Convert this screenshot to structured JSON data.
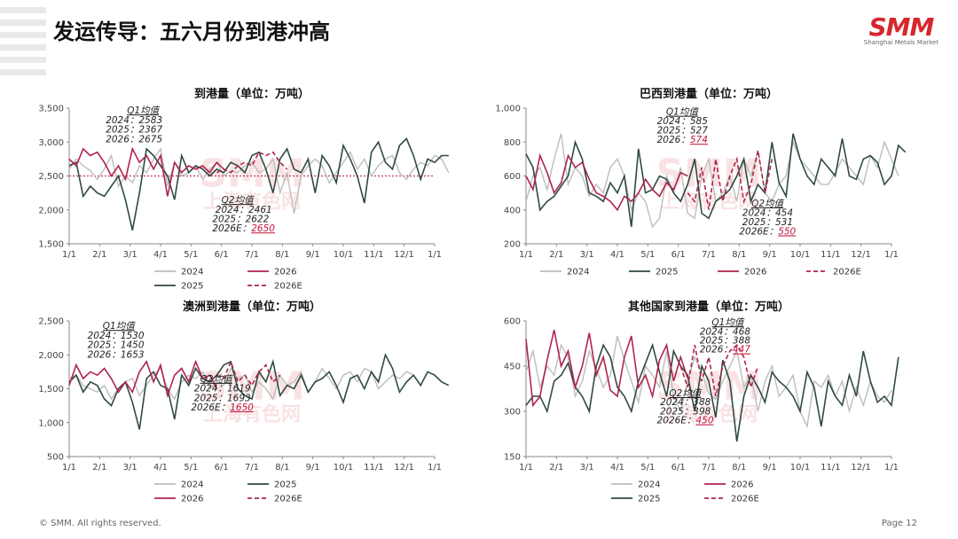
{
  "page": {
    "title": "发运传导：五六月份到港冲高",
    "logo": "SMM",
    "logo_sub": "Shanghai Metals Market",
    "watermark": "SMM",
    "watermark_sub": "上海有色网",
    "footer_left": "© SMM. All rights reserved.",
    "footer_right": "Page 12"
  },
  "colors": {
    "2024": "#bdbdbd",
    "2025": "#2f4a40",
    "2026": "#b0244a",
    "2026E": "#b0244a"
  },
  "chart_data": [
    {
      "type": "line",
      "title": "到港量（单位：万吨）",
      "ylim": [
        1500,
        3500
      ],
      "yticks": [
        "1,500",
        "2,000",
        "2,500",
        "3,000",
        "3,500"
      ],
      "yvals": [
        1500,
        2000,
        2500,
        3000,
        3500
      ],
      "xticks": [
        "1/1",
        "2/1",
        "3/1",
        "4/1",
        "5/1",
        "6/1",
        "7/1",
        "8/1",
        "9/1",
        "10/1",
        "11/1",
        "12/1",
        "1/1"
      ],
      "ref_line": 2500,
      "annotations": [
        {
          "text": "Q1均值",
          "row": 0,
          "x_at": 1.9,
          "y": 3420,
          "underline": true
        },
        {
          "text": "2024：2583",
          "row": 1,
          "x_at": 1.2,
          "y": 3280
        },
        {
          "text": "2025：2367",
          "row": 2,
          "x_at": 1.2,
          "y": 3140
        },
        {
          "text": "2026：2675",
          "row": 3,
          "x_at": 1.2,
          "y": 3000
        },
        {
          "text": "Q2均值",
          "row": 0,
          "x_at": 5.0,
          "y": 2100,
          "underline": true
        },
        {
          "text": "2024：2461",
          "row": 1,
          "x_at": 4.8,
          "y": 1960
        },
        {
          "text": "2025：2622",
          "row": 2,
          "x_at": 4.7,
          "y": 1820
        },
        {
          "text": "2026E：",
          "row": 3,
          "x_at": 4.7,
          "y": 1680,
          "tail": "2650"
        }
      ],
      "legend": [
        "2024",
        "2026",
        "2025",
        "2026E"
      ],
      "series": [
        {
          "name": "2024",
          "values": [
            2600,
            2750,
            2650,
            2580,
            2450,
            2600,
            2800,
            2350,
            2500,
            2400,
            2650,
            2550,
            2750,
            2900,
            2350,
            2700,
            2500,
            2550,
            2650,
            2450,
            2600,
            2700,
            2500,
            2580,
            2550,
            2650,
            2700,
            2550,
            2600,
            2750,
            2250,
            2550,
            1950,
            2500,
            2650,
            2750,
            2650,
            2400,
            2550,
            2700,
            2850,
            2600,
            2750,
            2500,
            2650,
            2750,
            2800,
            2550,
            2450,
            2600,
            2700,
            2650,
            2800,
            2750,
            2550
          ]
        },
        {
          "name": "2025",
          "values": [
            2650,
            2700,
            2200,
            2350,
            2250,
            2200,
            2350,
            2500,
            2150,
            1700,
            2250,
            2900,
            2800,
            2650,
            2500,
            2150,
            2800,
            2550,
            2650,
            2600,
            2500,
            2600,
            2550,
            2700,
            2650,
            2550,
            2800,
            2850,
            2600,
            2250,
            2750,
            2900,
            2600,
            2550,
            2750,
            2250,
            2800,
            2650,
            2400,
            2950,
            2750,
            2500,
            2100,
            2850,
            3000,
            2700,
            2600,
            2950,
            3050,
            2800,
            2450,
            2750,
            2700,
            2800,
            2800
          ]
        },
        {
          "name": "2026",
          "values": [
            2750,
            2650,
            2900,
            2800,
            2850,
            2700,
            2500,
            2650,
            2450,
            2900,
            2700,
            2800,
            2600,
            2800,
            2200,
            2700,
            2550,
            2650,
            2600,
            2650,
            2550,
            2700,
            2600
          ]
        },
        {
          "name": "2026E",
          "dashed": true,
          "values": [
            2550,
            2600,
            2550,
            2650,
            2700,
            2650,
            2850,
            2800,
            2850,
            2700,
            2600
          ],
          "offset": 21
        }
      ]
    },
    {
      "type": "line",
      "title": "巴西到港量（单位：万吨）",
      "ylim": [
        200,
        1000
      ],
      "yticks": [
        "200",
        "400",
        "600",
        "800",
        "1,000"
      ],
      "yvals": [
        200,
        400,
        600,
        800,
        1000
      ],
      "xticks": [
        "1/1",
        "2/1",
        "3/1",
        "4/1",
        "5/1",
        "6/1",
        "7/1",
        "8/1",
        "9/1",
        "10/1",
        "11/1",
        "12/1",
        "1/1"
      ],
      "annotations": [
        {
          "text": "Q1均值",
          "row": 0,
          "x_at": 4.6,
          "y": 960,
          "underline": true
        },
        {
          "text": "2024：585",
          "row": 1,
          "x_at": 4.3,
          "y": 905
        },
        {
          "text": "2025：527",
          "row": 2,
          "x_at": 4.3,
          "y": 850
        },
        {
          "text": "2026：",
          "row": 3,
          "x_at": 4.3,
          "y": 795,
          "tail": "574"
        },
        {
          "text": "Q2均值",
          "row": 0,
          "x_at": 7.4,
          "y": 420,
          "underline": true
        },
        {
          "text": "2024：454",
          "row": 1,
          "x_at": 7.1,
          "y": 365
        },
        {
          "text": "2025：531",
          "row": 2,
          "x_at": 7.1,
          "y": 310
        },
        {
          "text": "2026E：",
          "row": 3,
          "x_at": 7.0,
          "y": 255,
          "tail": "550"
        }
      ],
      "legend": [
        "2024",
        "2025",
        "2026",
        "2026E"
      ],
      "series": [
        {
          "name": "2024",
          "values": [
            450,
            600,
            650,
            520,
            700,
            850,
            550,
            650,
            600,
            480,
            550,
            500,
            650,
            700,
            600,
            400,
            500,
            450,
            300,
            350,
            600,
            500,
            650,
            380,
            350,
            600,
            700,
            450,
            500,
            600,
            450,
            700,
            600,
            750,
            500,
            450,
            550,
            600,
            800,
            700,
            650,
            600,
            550,
            550,
            620,
            700,
            650,
            600,
            550,
            720,
            650,
            800,
            700,
            600
          ]
        },
        {
          "name": "2025",
          "values": [
            730,
            650,
            400,
            450,
            480,
            540,
            600,
            800,
            700,
            500,
            480,
            450,
            560,
            500,
            600,
            300,
            760,
            500,
            520,
            600,
            580,
            500,
            450,
            550,
            700,
            380,
            350,
            450,
            480,
            520,
            600,
            700,
            450,
            550,
            500,
            800,
            560,
            480,
            850,
            700,
            600,
            550,
            700,
            650,
            600,
            820,
            600,
            580,
            700,
            720,
            680,
            550,
            600,
            780,
            740
          ]
        },
        {
          "name": "2026",
          "values": [
            600,
            520,
            720,
            620,
            500,
            560,
            720,
            650,
            680,
            580,
            500,
            480,
            450,
            400,
            480,
            450,
            500,
            580,
            520,
            480,
            560,
            520,
            620,
            600
          ]
        },
        {
          "name": "2026E",
          "dashed": true,
          "values": [
            500,
            450,
            650,
            400,
            700,
            450,
            600,
            700,
            450,
            550,
            750,
            500,
            700
          ],
          "offset": 23
        }
      ]
    },
    {
      "type": "line",
      "title": "澳洲到港量（单位：万吨）",
      "ylim": [
        500,
        2500
      ],
      "yticks": [
        "500",
        "1,000",
        "1,500",
        "2,000",
        "2,500"
      ],
      "yvals": [
        500,
        1000,
        1500,
        2000,
        2500
      ],
      "xticks": [
        "1/1",
        "2/1",
        "3/1",
        "4/1",
        "5/1",
        "6/1",
        "7/1",
        "8/1",
        "9/1",
        "10/1",
        "11/1",
        "12/1",
        "1/1"
      ],
      "annotations": [
        {
          "text": "Q1均值",
          "row": 0,
          "x_at": 1.1,
          "y": 2380,
          "underline": true
        },
        {
          "text": "2024：1530",
          "row": 1,
          "x_at": 0.6,
          "y": 2240
        },
        {
          "text": "2025：1450",
          "row": 2,
          "x_at": 0.6,
          "y": 2100
        },
        {
          "text": "2026：1653",
          "row": 3,
          "x_at": 0.6,
          "y": 1960
        },
        {
          "text": "Q2均值",
          "row": 0,
          "x_at": 4.3,
          "y": 1600,
          "underline": true
        },
        {
          "text": "2024：1619",
          "row": 1,
          "x_at": 4.1,
          "y": 1460
        },
        {
          "text": "2025：1693",
          "row": 2,
          "x_at": 4.1,
          "y": 1320
        },
        {
          "text": "2026E：",
          "row": 3,
          "x_at": 4.0,
          "y": 1180,
          "tail": "1650"
        }
      ],
      "legend": [
        "2024",
        "2025",
        "2026",
        "2026E"
      ],
      "series": [
        {
          "name": "2024",
          "values": [
            1650,
            1700,
            1550,
            1500,
            1450,
            1550,
            1350,
            1500,
            1600,
            1650,
            1400,
            1550,
            1700,
            1800,
            1500,
            1350,
            1600,
            1700,
            1650,
            1750,
            1500,
            1600,
            1550,
            1800,
            1650,
            1700,
            1450,
            1600,
            1500,
            1350,
            1700,
            1550,
            1600,
            1750,
            1450,
            1600,
            1800,
            1650,
            1500,
            1700,
            1750,
            1600,
            1800,
            1750,
            1500,
            1600,
            1700,
            1650,
            1750,
            1700,
            1550
          ]
        },
        {
          "name": "2025",
          "values": [
            1600,
            1700,
            1450,
            1600,
            1550,
            1350,
            1250,
            1500,
            1600,
            1300,
            900,
            1650,
            1750,
            1550,
            1500,
            1050,
            1700,
            1550,
            1800,
            1650,
            1600,
            1700,
            1850,
            1900,
            1500,
            1400,
            1350,
            1750,
            1600,
            1900,
            1400,
            1550,
            1500,
            1700,
            1450,
            1600,
            1650,
            1750,
            1550,
            1300,
            1650,
            1700,
            1500,
            1750,
            1600,
            2000,
            1800,
            1450,
            1600,
            1700,
            1550,
            1750,
            1700,
            1600,
            1550
          ]
        },
        {
          "name": "2026",
          "values": [
            1550,
            1850,
            1650,
            1750,
            1700,
            1800,
            1650,
            1450,
            1600,
            1450,
            1750,
            1900,
            1600,
            1850,
            1400,
            1700,
            1800,
            1600,
            1900,
            1650,
            1700,
            1500
          ]
        },
        {
          "name": "2026E",
          "dashed": true,
          "values": [
            1700,
            1650,
            1900,
            1600,
            1700,
            1550,
            1750,
            1850,
            1600,
            1700
          ],
          "offset": 21
        }
      ]
    },
    {
      "type": "line",
      "title": "其他国家到港量（单位：万吨）",
      "ylim": [
        150,
        600
      ],
      "yticks": [
        "150",
        "300",
        "450",
        "600"
      ],
      "yvals": [
        150,
        300,
        450,
        600
      ],
      "xticks": [
        "1/1",
        "2/1",
        "3/1",
        "4/1",
        "5/1",
        "6/1",
        "7/1",
        "8/1",
        "9/1",
        "10/1",
        "11/1",
        "12/1",
        "1/1"
      ],
      "annotations": [
        {
          "text": "Q1均值",
          "row": 0,
          "x_at": 6.1,
          "y": 585,
          "underline": true
        },
        {
          "text": "2024：468",
          "row": 1,
          "x_at": 5.7,
          "y": 555
        },
        {
          "text": "2025：388",
          "row": 2,
          "x_at": 5.7,
          "y": 525
        },
        {
          "text": "2026：",
          "row": 3,
          "x_at": 5.7,
          "y": 495,
          "tail": "447"
        },
        {
          "text": "Q2均值",
          "row": 0,
          "x_at": 4.7,
          "y": 350,
          "underline": true
        },
        {
          "text": "2024：388",
          "row": 1,
          "x_at": 4.4,
          "y": 320
        },
        {
          "text": "2025：398",
          "row": 2,
          "x_at": 4.4,
          "y": 290
        },
        {
          "text": "2026E：",
          "row": 3,
          "x_at": 4.3,
          "y": 260,
          "tail": "450"
        }
      ],
      "legend": [
        "2024",
        "2026",
        "2025",
        "2026E"
      ],
      "series": [
        {
          "name": "2024",
          "values": [
            430,
            500,
            380,
            450,
            420,
            520,
            480,
            350,
            400,
            500,
            440,
            380,
            420,
            550,
            470,
            400,
            330,
            450,
            420,
            380,
            500,
            350,
            300,
            400,
            480,
            430,
            360,
            340,
            400,
            450,
            500,
            380,
            420,
            300,
            400,
            450,
            350,
            380,
            420,
            300,
            250,
            400,
            380,
            420,
            350,
            400,
            300,
            380,
            320,
            400,
            350,
            330,
            370
          ]
        },
        {
          "name": "2025",
          "values": [
            320,
            350,
            350,
            300,
            400,
            420,
            460,
            380,
            350,
            300,
            450,
            520,
            480,
            380,
            350,
            300,
            400,
            460,
            520,
            430,
            350,
            500,
            450,
            420,
            300,
            450,
            400,
            280,
            470,
            400,
            200,
            350,
            420,
            380,
            330,
            430,
            400,
            380,
            350,
            300,
            430,
            380,
            250,
            400,
            350,
            320,
            420,
            350,
            500,
            400,
            330,
            350,
            320,
            480
          ]
        },
        {
          "name": "2026",
          "values": [
            540,
            320,
            350,
            470,
            570,
            450,
            500,
            380,
            450,
            560,
            420,
            480,
            370,
            350,
            480,
            550,
            380,
            420,
            350,
            470,
            520,
            400,
            480,
            410
          ]
        },
        {
          "name": "2026E",
          "dashed": true,
          "values": [
            450,
            380,
            520,
            400,
            480,
            350,
            450,
            500,
            520,
            480,
            380,
            450
          ],
          "offset": 22
        }
      ]
    }
  ]
}
